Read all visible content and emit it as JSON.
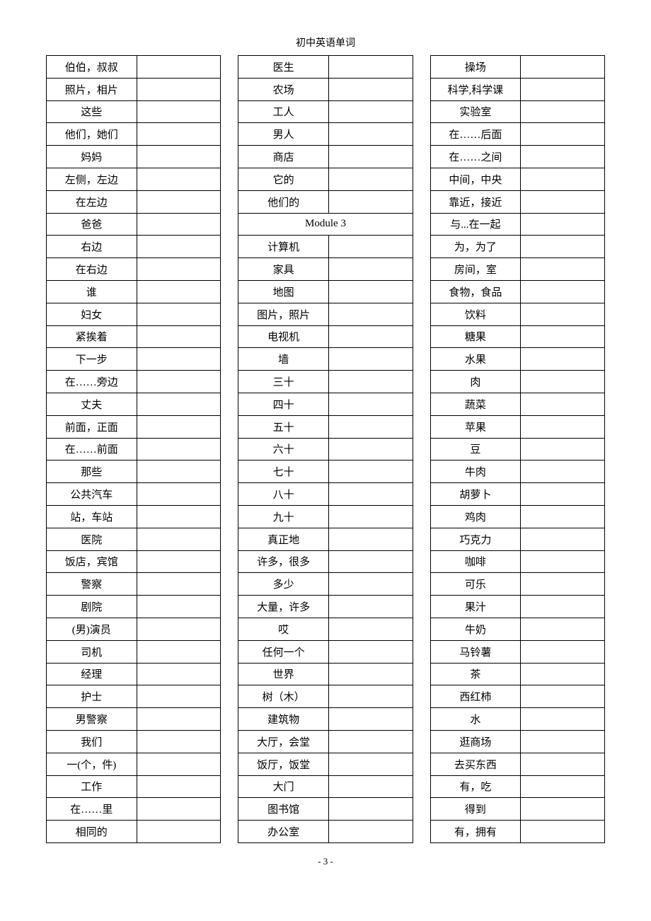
{
  "header": "初中英语单词",
  "footer": "- 3 -",
  "columns": [
    {
      "rows": [
        {
          "type": "word",
          "cn": "伯伯，叔叔",
          "en": ""
        },
        {
          "type": "word",
          "cn": "照片，相片",
          "en": ""
        },
        {
          "type": "word",
          "cn": "这些",
          "en": ""
        },
        {
          "type": "word",
          "cn": "他们，她们",
          "en": ""
        },
        {
          "type": "word",
          "cn": "妈妈",
          "en": ""
        },
        {
          "type": "word",
          "cn": "左侧，左边",
          "en": ""
        },
        {
          "type": "word",
          "cn": "在左边",
          "en": ""
        },
        {
          "type": "word",
          "cn": "爸爸",
          "en": ""
        },
        {
          "type": "word",
          "cn": "右边",
          "en": ""
        },
        {
          "type": "word",
          "cn": "在右边",
          "en": ""
        },
        {
          "type": "word",
          "cn": "谁",
          "en": ""
        },
        {
          "type": "word",
          "cn": "妇女",
          "en": ""
        },
        {
          "type": "word",
          "cn": "紧挨着",
          "en": ""
        },
        {
          "type": "word",
          "cn": "下一步",
          "en": ""
        },
        {
          "type": "word",
          "cn": "在……旁边",
          "en": ""
        },
        {
          "type": "word",
          "cn": "丈夫",
          "en": ""
        },
        {
          "type": "word",
          "cn": "前面，正面",
          "en": ""
        },
        {
          "type": "word",
          "cn": "在……前面",
          "en": ""
        },
        {
          "type": "word",
          "cn": "那些",
          "en": ""
        },
        {
          "type": "word",
          "cn": "公共汽车",
          "en": ""
        },
        {
          "type": "word",
          "cn": "站，车站",
          "en": ""
        },
        {
          "type": "word",
          "cn": "医院",
          "en": ""
        },
        {
          "type": "word",
          "cn": "饭店，宾馆",
          "en": ""
        },
        {
          "type": "word",
          "cn": "警察",
          "en": ""
        },
        {
          "type": "word",
          "cn": "剧院",
          "en": ""
        },
        {
          "type": "word",
          "cn": "(男)演员",
          "en": ""
        },
        {
          "type": "word",
          "cn": "司机",
          "en": ""
        },
        {
          "type": "word",
          "cn": "经理",
          "en": ""
        },
        {
          "type": "word",
          "cn": "护士",
          "en": ""
        },
        {
          "type": "word",
          "cn": "男警察",
          "en": ""
        },
        {
          "type": "word",
          "cn": "我们",
          "en": ""
        },
        {
          "type": "word",
          "cn": "一(个，件)",
          "en": ""
        },
        {
          "type": "word",
          "cn": "工作",
          "en": ""
        },
        {
          "type": "word",
          "cn": "在……里",
          "en": ""
        },
        {
          "type": "word",
          "cn": "相同的",
          "en": ""
        }
      ]
    },
    {
      "rows": [
        {
          "type": "word",
          "cn": "医生",
          "en": ""
        },
        {
          "type": "word",
          "cn": "农场",
          "en": ""
        },
        {
          "type": "word",
          "cn": "工人",
          "en": ""
        },
        {
          "type": "word",
          "cn": "男人",
          "en": ""
        },
        {
          "type": "word",
          "cn": "商店",
          "en": ""
        },
        {
          "type": "word",
          "cn": "它的",
          "en": ""
        },
        {
          "type": "word",
          "cn": "他们的",
          "en": ""
        },
        {
          "type": "module",
          "label": "Module 3"
        },
        {
          "type": "word",
          "cn": "计算机",
          "en": ""
        },
        {
          "type": "word",
          "cn": "家具",
          "en": ""
        },
        {
          "type": "word",
          "cn": "地图",
          "en": ""
        },
        {
          "type": "word",
          "cn": "图片，照片",
          "en": ""
        },
        {
          "type": "word",
          "cn": "电视机",
          "en": ""
        },
        {
          "type": "word",
          "cn": "墙",
          "en": ""
        },
        {
          "type": "word",
          "cn": "三十",
          "en": ""
        },
        {
          "type": "word",
          "cn": "四十",
          "en": ""
        },
        {
          "type": "word",
          "cn": "五十",
          "en": ""
        },
        {
          "type": "word",
          "cn": "六十",
          "en": ""
        },
        {
          "type": "word",
          "cn": "七十",
          "en": ""
        },
        {
          "type": "word",
          "cn": "八十",
          "en": ""
        },
        {
          "type": "word",
          "cn": "九十",
          "en": ""
        },
        {
          "type": "word",
          "cn": "真正地",
          "en": ""
        },
        {
          "type": "word",
          "cn": "许多，很多",
          "en": ""
        },
        {
          "type": "word",
          "cn": "多少",
          "en": ""
        },
        {
          "type": "word",
          "cn": "大量，许多",
          "en": ""
        },
        {
          "type": "word",
          "cn": "哎",
          "en": ""
        },
        {
          "type": "word",
          "cn": "任何一个",
          "en": ""
        },
        {
          "type": "word",
          "cn": "世界",
          "en": ""
        },
        {
          "type": "word",
          "cn": "树（木）",
          "en": ""
        },
        {
          "type": "word",
          "cn": "建筑物",
          "en": ""
        },
        {
          "type": "word",
          "cn": "大厅，会堂",
          "en": ""
        },
        {
          "type": "word",
          "cn": "饭厅，饭堂",
          "en": ""
        },
        {
          "type": "word",
          "cn": "大门",
          "en": ""
        },
        {
          "type": "word",
          "cn": "图书馆",
          "en": ""
        },
        {
          "type": "word",
          "cn": "办公室",
          "en": ""
        }
      ]
    },
    {
      "rows": [
        {
          "type": "word",
          "cn": "操场",
          "en": ""
        },
        {
          "type": "word",
          "cn": "科学,科学课",
          "en": ""
        },
        {
          "type": "word",
          "cn": "实验室",
          "en": ""
        },
        {
          "type": "word",
          "cn": "在……后面",
          "en": ""
        },
        {
          "type": "word",
          "cn": "在……之间",
          "en": ""
        },
        {
          "type": "word",
          "cn": "中间，中央",
          "en": ""
        },
        {
          "type": "word",
          "cn": "靠近，接近",
          "en": ""
        },
        {
          "type": "word",
          "cn": "与...在一起",
          "en": ""
        },
        {
          "type": "word",
          "cn": "为，为了",
          "en": ""
        },
        {
          "type": "word",
          "cn": "房间，室",
          "en": ""
        },
        {
          "type": "word",
          "cn": "食物，食品",
          "en": ""
        },
        {
          "type": "word",
          "cn": "饮料",
          "en": ""
        },
        {
          "type": "word",
          "cn": "糖果",
          "en": ""
        },
        {
          "type": "word",
          "cn": "水果",
          "en": ""
        },
        {
          "type": "word",
          "cn": "肉",
          "en": ""
        },
        {
          "type": "word",
          "cn": "蔬菜",
          "en": ""
        },
        {
          "type": "word",
          "cn": "苹果",
          "en": ""
        },
        {
          "type": "word",
          "cn": "豆",
          "en": ""
        },
        {
          "type": "word",
          "cn": "牛肉",
          "en": ""
        },
        {
          "type": "word",
          "cn": "胡萝卜",
          "en": ""
        },
        {
          "type": "word",
          "cn": "鸡肉",
          "en": ""
        },
        {
          "type": "word",
          "cn": "巧克力",
          "en": ""
        },
        {
          "type": "word",
          "cn": "咖啡",
          "en": ""
        },
        {
          "type": "word",
          "cn": "可乐",
          "en": ""
        },
        {
          "type": "word",
          "cn": "果汁",
          "en": ""
        },
        {
          "type": "word",
          "cn": "牛奶",
          "en": ""
        },
        {
          "type": "word",
          "cn": "马铃薯",
          "en": ""
        },
        {
          "type": "word",
          "cn": "茶",
          "en": ""
        },
        {
          "type": "word",
          "cn": "西红柿",
          "en": ""
        },
        {
          "type": "word",
          "cn": "水",
          "en": ""
        },
        {
          "type": "word",
          "cn": "逛商场",
          "en": ""
        },
        {
          "type": "word",
          "cn": "去买东西",
          "en": ""
        },
        {
          "type": "word",
          "cn": "有，吃",
          "en": ""
        },
        {
          "type": "word",
          "cn": "得到",
          "en": ""
        },
        {
          "type": "word",
          "cn": "有，拥有",
          "en": ""
        }
      ]
    }
  ]
}
